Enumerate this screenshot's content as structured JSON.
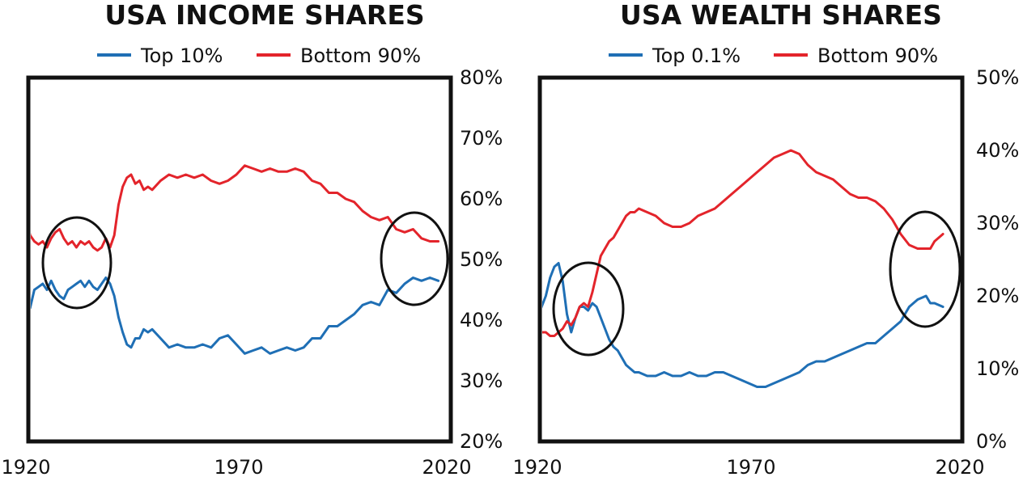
{
  "colors": {
    "blue": "#1f6fb5",
    "red": "#e3242b",
    "ink": "#111111"
  },
  "chart_data": [
    {
      "type": "line",
      "title": "USA INCOME SHARES",
      "xlim": [
        1920,
        2020
      ],
      "ylim": [
        20,
        80
      ],
      "x_ticks": [
        1920,
        1970,
        2020
      ],
      "x_tick_labels": [
        "1920",
        "1970",
        "2020"
      ],
      "y_ticks": [
        20,
        30,
        40,
        50,
        60,
        70,
        80
      ],
      "y_tick_labels": [
        "20%",
        "30%",
        "40%",
        "50%",
        "60%",
        "70%",
        "80%"
      ],
      "y_axis_side": "right",
      "legend_position": "top",
      "series": [
        {
          "name": "Top 10%",
          "color": "#1f6fb5",
          "x": [
            1917,
            1918,
            1919,
            1920,
            1921,
            1922,
            1923,
            1924,
            1925,
            1926,
            1927,
            1928,
            1929,
            1930,
            1931,
            1932,
            1933,
            1934,
            1935,
            1936,
            1937,
            1938,
            1939,
            1940,
            1941,
            1942,
            1943,
            1944,
            1945,
            1946,
            1947,
            1948,
            1949,
            1950,
            1952,
            1954,
            1956,
            1958,
            1960,
            1962,
            1964,
            1966,
            1968,
            1970,
            1972,
            1974,
            1976,
            1978,
            1980,
            1982,
            1984,
            1986,
            1988,
            1990,
            1992,
            1994,
            1996,
            1998,
            2000,
            2002,
            2004,
            2006,
            2008,
            2010,
            2012,
            2014,
            2016,
            2018
          ],
          "values": [
            40.5,
            43,
            45.5,
            44.5,
            42,
            45,
            45.5,
            46,
            45,
            46.5,
            45,
            44,
            43.5,
            45,
            45.5,
            46,
            46.5,
            45.5,
            46.5,
            45.5,
            45,
            46,
            47,
            46,
            44,
            40.5,
            38,
            36,
            35.5,
            37,
            37,
            38.5,
            38,
            38.5,
            37,
            35.5,
            36,
            35.5,
            35.5,
            36,
            35.5,
            37,
            37.5,
            36,
            34.5,
            35,
            35.5,
            34.5,
            35,
            35.5,
            35,
            35.5,
            37,
            37,
            39,
            39,
            40,
            41,
            42.5,
            43,
            42.5,
            45,
            44.5,
            46,
            47,
            46.5,
            47,
            46.5
          ]
        },
        {
          "name": "Bottom 90%",
          "color": "#e3242b",
          "x": [
            1917,
            1918,
            1919,
            1920,
            1921,
            1922,
            1923,
            1924,
            1925,
            1926,
            1927,
            1928,
            1929,
            1930,
            1931,
            1932,
            1933,
            1934,
            1935,
            1936,
            1937,
            1938,
            1939,
            1940,
            1941,
            1942,
            1943,
            1944,
            1945,
            1946,
            1947,
            1948,
            1949,
            1950,
            1952,
            1954,
            1956,
            1958,
            1960,
            1962,
            1964,
            1966,
            1968,
            1970,
            1972,
            1974,
            1976,
            1978,
            1980,
            1982,
            1984,
            1986,
            1988,
            1990,
            1992,
            1994,
            1996,
            1998,
            2000,
            2002,
            2004,
            2006,
            2008,
            2010,
            2012,
            2014,
            2016,
            2018
          ],
          "values": [
            57,
            53.5,
            55,
            57,
            54,
            53,
            52.5,
            53,
            52,
            53.5,
            54.5,
            55,
            53.5,
            52.5,
            53,
            52,
            53,
            52.5,
            53,
            52,
            51.5,
            52,
            53.5,
            52,
            54,
            59,
            62,
            63.5,
            64,
            62.5,
            63,
            61.5,
            62,
            61.5,
            63,
            64,
            63.5,
            64,
            63.5,
            64,
            63,
            62.5,
            63,
            64,
            65.5,
            65,
            64.5,
            65,
            64.5,
            64.5,
            65,
            64.5,
            63,
            62.5,
            61,
            61,
            60,
            59.5,
            58,
            57,
            56.5,
            57,
            55,
            54.5,
            55,
            53.5,
            53,
            53
          ]
        }
      ]
    },
    {
      "type": "line",
      "title": "USA WEALTH SHARES",
      "xlim": [
        1920,
        2020
      ],
      "ylim": [
        0,
        50
      ],
      "x_ticks": [
        1920,
        1970,
        2020
      ],
      "x_tick_labels": [
        "1920",
        "1970",
        "2020"
      ],
      "y_ticks": [
        0,
        10,
        20,
        30,
        40,
        50
      ],
      "y_tick_labels": [
        "0%",
        "10%",
        "20%",
        "30%",
        "40%",
        "50%"
      ],
      "y_axis_side": "right",
      "legend_position": "top",
      "series": [
        {
          "name": "Top 0.1%",
          "color": "#1f6fb5",
          "x": [
            1913,
            1914,
            1915,
            1916,
            1917,
            1918,
            1919,
            1920,
            1921,
            1922,
            1923,
            1924,
            1925,
            1926,
            1927,
            1928,
            1929,
            1930,
            1931,
            1932,
            1933,
            1934,
            1935,
            1936,
            1937,
            1938,
            1939,
            1940,
            1941,
            1942,
            1943,
            1944,
            1946,
            1948,
            1950,
            1952,
            1954,
            1956,
            1958,
            1960,
            1962,
            1964,
            1966,
            1968,
            1970,
            1972,
            1974,
            1976,
            1978,
            1980,
            1982,
            1984,
            1986,
            1988,
            1990,
            1992,
            1994,
            1996,
            1998,
            2000,
            2002,
            2004,
            2006,
            2008,
            2010,
            2012,
            2013,
            2014,
            2016
          ],
          "values": [
            13.5,
            14.5,
            15.5,
            17,
            15.5,
            15,
            16.5,
            17,
            18.5,
            20,
            22.5,
            24,
            24.5,
            22,
            17.5,
            15,
            17,
            18.5,
            18.5,
            18,
            19,
            18.5,
            17,
            15.5,
            14,
            13,
            12.5,
            11.5,
            10.5,
            10,
            9.5,
            9.5,
            9,
            9,
            9.5,
            9,
            9,
            9.5,
            9,
            9,
            9.5,
            9.5,
            9,
            8.5,
            8,
            7.5,
            7.5,
            8,
            8.5,
            9,
            9.5,
            10.5,
            11,
            11,
            11.5,
            12,
            12.5,
            13,
            13.5,
            13.5,
            14.5,
            15.5,
            16.5,
            18.5,
            19.5,
            20,
            19,
            19,
            18.5
          ]
        },
        {
          "name": "Bottom 90%",
          "color": "#e3242b",
          "x": [
            1913,
            1914,
            1915,
            1916,
            1917,
            1918,
            1919,
            1920,
            1921,
            1922,
            1923,
            1924,
            1925,
            1926,
            1927,
            1928,
            1929,
            1930,
            1931,
            1932,
            1933,
            1934,
            1935,
            1936,
            1937,
            1938,
            1939,
            1940,
            1941,
            1942,
            1943,
            1944,
            1946,
            1948,
            1950,
            1952,
            1954,
            1956,
            1958,
            1960,
            1962,
            1964,
            1966,
            1968,
            1970,
            1972,
            1974,
            1976,
            1978,
            1980,
            1982,
            1984,
            1986,
            1988,
            1990,
            1992,
            1994,
            1996,
            1998,
            2000,
            2002,
            2004,
            2006,
            2008,
            2010,
            2012,
            2013,
            2014,
            2016
          ],
          "values": [
            21,
            21,
            20.5,
            20,
            18.5,
            17.5,
            16.5,
            15.5,
            15,
            15,
            14.5,
            14.5,
            15,
            15.5,
            16.5,
            16,
            17,
            18.5,
            19,
            18.5,
            20.5,
            23,
            25.5,
            26.5,
            27.5,
            28,
            29,
            30,
            31,
            31.5,
            31.5,
            32,
            31.5,
            31,
            30,
            29.5,
            29.5,
            30,
            31,
            31.5,
            32,
            33,
            34,
            35,
            36,
            37,
            38,
            39,
            39.5,
            40,
            39.5,
            38,
            37,
            36.5,
            36,
            35,
            34,
            33.5,
            33.5,
            33,
            32,
            30.5,
            28.5,
            27,
            26.5,
            26.5,
            26.5,
            27.5,
            28.5
          ]
        }
      ]
    }
  ]
}
